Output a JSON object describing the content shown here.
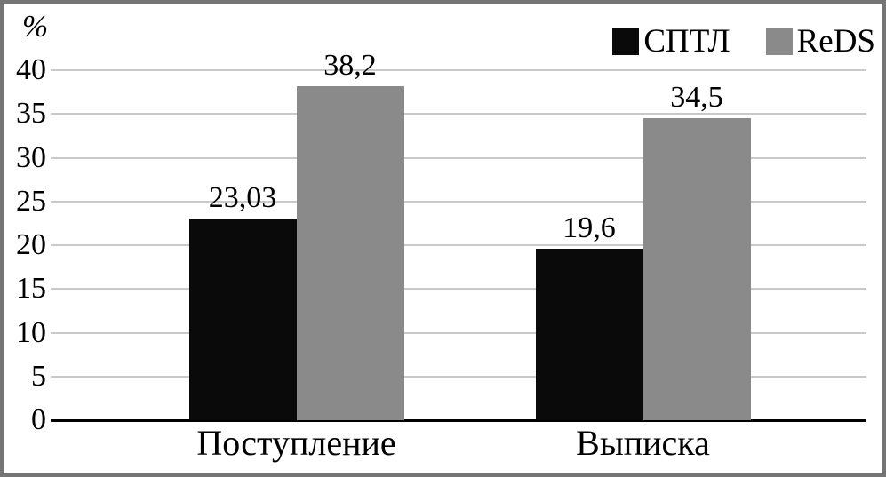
{
  "chart_data": {
    "type": "bar",
    "title": "",
    "xlabel": "",
    "ylabel": "%",
    "categories": [
      "Поступление",
      "Выписка"
    ],
    "series": [
      {
        "name": "СПТЛ",
        "color": "#0a0a0a",
        "values": [
          23.03,
          19.6
        ],
        "value_labels": [
          "23,03",
          "19,6"
        ]
      },
      {
        "name": "ReDS",
        "color": "#8a8a8a",
        "values": [
          38.2,
          34.5
        ],
        "value_labels": [
          "38,2",
          "34,5"
        ]
      }
    ],
    "ylim": [
      0,
      40
    ],
    "yticks": [
      0,
      5,
      10,
      15,
      20,
      25,
      30,
      35,
      40
    ],
    "ytick_labels": [
      "0",
      "5",
      "10",
      "15",
      "20",
      "25",
      "30",
      "35",
      "40"
    ],
    "grid": true,
    "legend_position": "top-right",
    "decimal_separator": ","
  },
  "colors": {
    "gridline": "#c9c9c9",
    "axis_line": "#000000",
    "frame_border": "#757575",
    "background": "#ffffff",
    "text": "#000000"
  }
}
